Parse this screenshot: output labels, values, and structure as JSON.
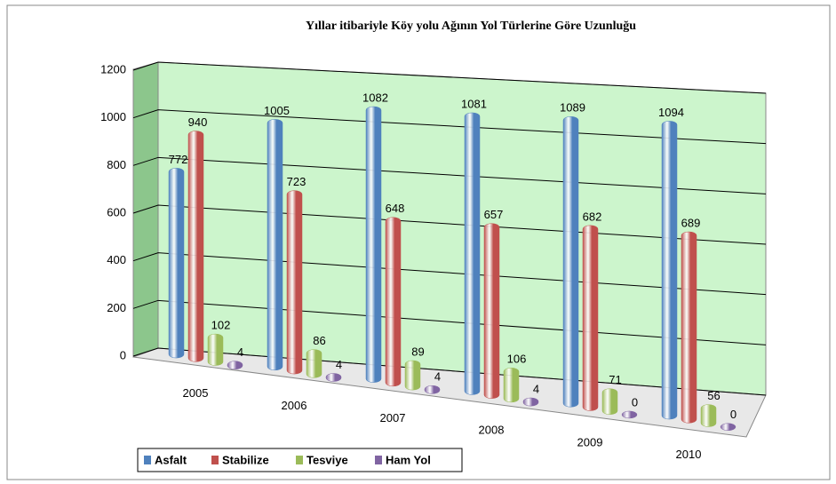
{
  "chart_data": {
    "type": "bar3d",
    "title": "Yıllar itibariyle Köy yolu Ağının Yol Türlerine Göre Uzunluğu",
    "categories": [
      "2005",
      "2006",
      "2007",
      "2008",
      "2009",
      "2010"
    ],
    "series": [
      {
        "name": "Asfalt",
        "color": "#4f81bd",
        "values": [
          772,
          1005,
          1082,
          1081,
          1089,
          1094
        ]
      },
      {
        "name": "Stabilize",
        "color": "#c0504d",
        "values": [
          940,
          723,
          648,
          657,
          682,
          689
        ]
      },
      {
        "name": "Tesviye",
        "color": "#9bbb59",
        "values": [
          102,
          86,
          89,
          106,
          71,
          56
        ]
      },
      {
        "name": "Ham Yol",
        "color": "#8064a2",
        "values": [
          4,
          4,
          4,
          4,
          0,
          0
        ]
      }
    ],
    "ylim": [
      0,
      1200
    ],
    "yticks": [
      0,
      200,
      400,
      600,
      800,
      1000,
      1200
    ],
    "grid": true,
    "legend": "bottom-left"
  }
}
